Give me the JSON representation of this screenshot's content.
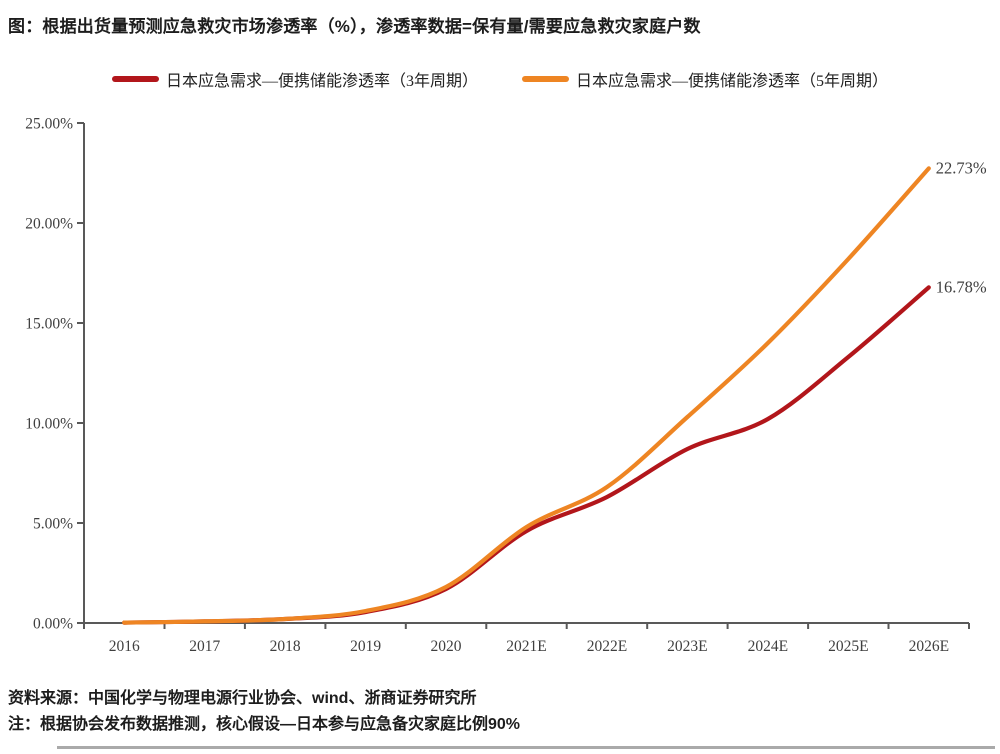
{
  "page": {
    "title": "图：根据出货量预测应急救灾市场渗透率（%），渗透率数据=保有量/需要应急救灾家庭户数",
    "source_note": "资料来源：中国化学与物理电源行业协会、wind、浙商证券研究所",
    "assumption_note": "注：根据协会发布数据推测，核心假设—日本参与应急备灾家庭比例90%"
  },
  "colors": {
    "series_3yr": "#B2161B",
    "series_5yr": "#EE8523",
    "axis": "#595959",
    "tick_text": "#3f3f3f"
  },
  "chart_data": {
    "type": "line",
    "title": "根据出货量预测应急救灾市场渗透率（%）",
    "categories": [
      "2016",
      "2017",
      "2018",
      "2019",
      "2020",
      "2021E",
      "2022E",
      "2023E",
      "2024E",
      "2025E",
      "2026E"
    ],
    "series": [
      {
        "name": "日本应急需求—便携储能渗透率（3年周期）",
        "color": "#B2161B",
        "values": [
          0.02,
          0.08,
          0.2,
          0.55,
          1.7,
          4.6,
          6.3,
          8.7,
          10.2,
          13.3,
          16.78
        ],
        "end_label": "16.78%"
      },
      {
        "name": "日本应急需求—便携储能渗透率（5年周期）",
        "color": "#EE8523",
        "values": [
          0.02,
          0.08,
          0.2,
          0.6,
          1.8,
          4.8,
          6.8,
          10.3,
          14.0,
          18.2,
          22.73
        ],
        "end_label": "22.73%"
      }
    ],
    "ylim": [
      0,
      25
    ],
    "y_ticks": [
      "0.00%",
      "5.00%",
      "10.00%",
      "15.00%",
      "20.00%",
      "25.00%"
    ],
    "y_tick_step": 5,
    "xlabel": "",
    "ylabel": "",
    "grid": false,
    "legend_position": "top",
    "smoothed": true
  }
}
